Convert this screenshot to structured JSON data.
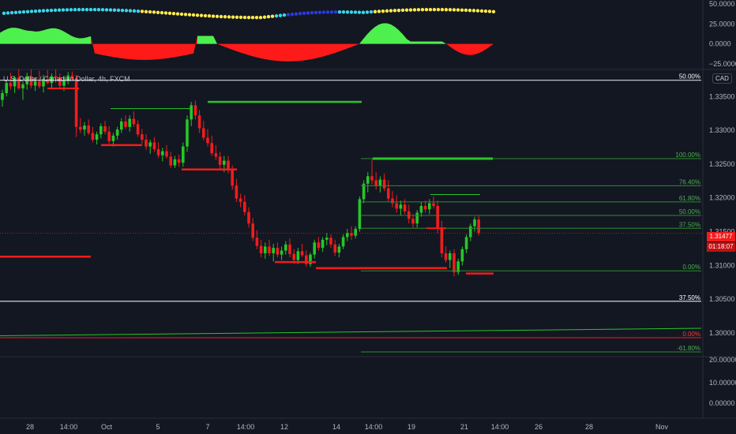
{
  "header": {
    "symbol_title": "U.S. Dollar / Canadian Dollar, 4h, FXCM",
    "currency_badge": "CAD"
  },
  "colors": {
    "background": "#131722",
    "up": "#26c726",
    "down": "#f21c1c",
    "fib_line": "#2e8b2e",
    "fib_text": "#4caf50",
    "osc_green": "#4ef04e",
    "osc_red": "#ff1a1a",
    "dot_cyan": "#3ad6e8",
    "dot_yellow": "#ffe94d",
    "dot_blue": "#2a3bd9",
    "price_tag": "#f21c1c",
    "white_line": "#d1d4dc",
    "grid": "#2a2e39"
  },
  "oscillator": {
    "y_ticks": [
      "50.0000",
      "25.0000",
      "0.0000",
      "−25.0000"
    ],
    "y_values": [
      50,
      25,
      0,
      -25
    ],
    "ylim": [
      -32,
      55
    ]
  },
  "lower_panel": {
    "y_ticks": [
      "20.00000",
      "10.00000",
      "0.00000"
    ]
  },
  "price_axis": {
    "ticks": [
      "1.33500",
      "1.33000",
      "1.32500",
      "1.32000",
      "1.31500",
      "1.31000",
      "1.30500",
      "1.30000"
    ],
    "values": [
      1.335,
      1.33,
      1.325,
      1.32,
      1.315,
      1.31,
      1.305,
      1.3
    ]
  },
  "price_tag": {
    "price": "1.31477",
    "countdown": "01:18:07",
    "value": 1.31477
  },
  "x_axis": {
    "labels": [
      "28",
      "14:00",
      "Oct",
      "5",
      "7",
      "14:00",
      "12",
      "14",
      "14:00",
      "19",
      "21",
      "14:00",
      "26",
      "28",
      "Nov"
    ]
  },
  "fib_levels": [
    {
      "label": "100.00%",
      "price": 1.3258
    },
    {
      "label": "76.40%",
      "price": 1.3218
    },
    {
      "label": "61.80%",
      "price": 1.3194
    },
    {
      "label": "50.00%",
      "price": 1.3174
    },
    {
      "label": "37.50%",
      "price": 1.3155
    },
    {
      "label": "0.00%",
      "price": 1.3092
    }
  ],
  "fib_levels_outer": [
    {
      "label": "50.00%",
      "price": 1.3374
    },
    {
      "label": "37.50%",
      "price": 1.3047
    },
    {
      "label": "0.00%",
      "price": 1.2993
    },
    {
      "label": "-61.80%",
      "price": 1.2972
    }
  ],
  "chart_data": {
    "type": "candlestick",
    "ylim": [
      1.2965,
      1.339
    ],
    "candles": [
      [
        1.3345,
        1.336,
        1.3335,
        1.3355
      ],
      [
        1.3355,
        1.3375,
        1.335,
        1.337
      ],
      [
        1.337,
        1.3385,
        1.336,
        1.3365
      ],
      [
        1.3365,
        1.338,
        1.3355,
        1.3378
      ],
      [
        1.3378,
        1.339,
        1.336,
        1.3362
      ],
      [
        1.3362,
        1.3372,
        1.3345,
        1.3368
      ],
      [
        1.3368,
        1.3385,
        1.336,
        1.338
      ],
      [
        1.338,
        1.339,
        1.3362,
        1.3366
      ],
      [
        1.3366,
        1.3378,
        1.3358,
        1.3372
      ],
      [
        1.3372,
        1.3388,
        1.3362,
        1.3365
      ],
      [
        1.3365,
        1.3382,
        1.3356,
        1.3376
      ],
      [
        1.3376,
        1.3389,
        1.3368,
        1.337
      ],
      [
        1.337,
        1.3384,
        1.3362,
        1.338
      ],
      [
        1.338,
        1.339,
        1.337,
        1.3378
      ],
      [
        1.3378,
        1.3384,
        1.3362,
        1.3366
      ],
      [
        1.3366,
        1.338,
        1.3358,
        1.3374
      ],
      [
        1.3374,
        1.3386,
        1.3368,
        1.3381
      ],
      [
        1.3381,
        1.3387,
        1.3375,
        1.3377
      ],
      [
        1.3377,
        1.3382,
        1.329,
        1.3305
      ],
      [
        1.3305,
        1.3318,
        1.3296,
        1.3301
      ],
      [
        1.3301,
        1.3312,
        1.3292,
        1.3307
      ],
      [
        1.3307,
        1.3316,
        1.3293,
        1.3296
      ],
      [
        1.3296,
        1.3305,
        1.3282,
        1.3286
      ],
      [
        1.3286,
        1.3298,
        1.3279,
        1.3294
      ],
      [
        1.3294,
        1.331,
        1.3288,
        1.3306
      ],
      [
        1.3306,
        1.3314,
        1.3294,
        1.3298
      ],
      [
        1.3298,
        1.3306,
        1.328,
        1.3284
      ],
      [
        1.3284,
        1.3296,
        1.3276,
        1.3292
      ],
      [
        1.3292,
        1.3305,
        1.3286,
        1.3301
      ],
      [
        1.3301,
        1.3318,
        1.3296,
        1.3313
      ],
      [
        1.3313,
        1.3322,
        1.3302,
        1.3305
      ],
      [
        1.3305,
        1.3322,
        1.3298,
        1.3317
      ],
      [
        1.3317,
        1.3328,
        1.3305,
        1.3309
      ],
      [
        1.3309,
        1.3315,
        1.329,
        1.3294
      ],
      [
        1.3294,
        1.3302,
        1.328,
        1.3286
      ],
      [
        1.3286,
        1.3294,
        1.3271,
        1.3276
      ],
      [
        1.3276,
        1.3286,
        1.3265,
        1.3282
      ],
      [
        1.3282,
        1.329,
        1.3268,
        1.3272
      ],
      [
        1.3272,
        1.3282,
        1.3259,
        1.3263
      ],
      [
        1.3263,
        1.3274,
        1.3254,
        1.3269
      ],
      [
        1.3269,
        1.3278,
        1.3258,
        1.3261
      ],
      [
        1.3261,
        1.3268,
        1.3244,
        1.3248
      ],
      [
        1.3248,
        1.3262,
        1.3244,
        1.3257
      ],
      [
        1.3257,
        1.3264,
        1.3246,
        1.3252
      ],
      [
        1.3252,
        1.3282,
        1.3246,
        1.3276
      ],
      [
        1.3276,
        1.3322,
        1.3268,
        1.3316
      ],
      [
        1.3316,
        1.3342,
        1.3306,
        1.3337
      ],
      [
        1.3337,
        1.3344,
        1.3316,
        1.3322
      ],
      [
        1.3322,
        1.333,
        1.3296,
        1.3303
      ],
      [
        1.3303,
        1.3314,
        1.3285,
        1.3289
      ],
      [
        1.3289,
        1.3302,
        1.3276,
        1.3281
      ],
      [
        1.3281,
        1.3292,
        1.3262,
        1.3266
      ],
      [
        1.3266,
        1.3278,
        1.3256,
        1.3261
      ],
      [
        1.3261,
        1.3268,
        1.3243,
        1.3249
      ],
      [
        1.3249,
        1.3262,
        1.3238,
        1.3255
      ],
      [
        1.3255,
        1.3262,
        1.3236,
        1.3241
      ],
      [
        1.3241,
        1.3248,
        1.3212,
        1.3218
      ],
      [
        1.3218,
        1.3228,
        1.3194,
        1.3199
      ],
      [
        1.3199,
        1.3206,
        1.3186,
        1.3194
      ],
      [
        1.3194,
        1.3204,
        1.3174,
        1.3179
      ],
      [
        1.3179,
        1.3186,
        1.3156,
        1.3162
      ],
      [
        1.3162,
        1.317,
        1.3136,
        1.3141
      ],
      [
        1.3141,
        1.3152,
        1.3124,
        1.3129
      ],
      [
        1.3129,
        1.3138,
        1.3112,
        1.3118
      ],
      [
        1.3118,
        1.3134,
        1.311,
        1.3128
      ],
      [
        1.3128,
        1.3138,
        1.3114,
        1.3118
      ],
      [
        1.3118,
        1.3132,
        1.3106,
        1.3126
      ],
      [
        1.3126,
        1.3134,
        1.3112,
        1.3116
      ],
      [
        1.3116,
        1.3128,
        1.3108,
        1.3122
      ],
      [
        1.3122,
        1.3136,
        1.3116,
        1.3131
      ],
      [
        1.3131,
        1.314,
        1.3112,
        1.3117
      ],
      [
        1.3117,
        1.3124,
        1.3102,
        1.3108
      ],
      [
        1.3108,
        1.3126,
        1.3102,
        1.3121
      ],
      [
        1.3121,
        1.3132,
        1.3112,
        1.3115
      ],
      [
        1.3115,
        1.3122,
        1.3098,
        1.3102
      ],
      [
        1.3102,
        1.3119,
        1.3098,
        1.3116
      ],
      [
        1.3116,
        1.3138,
        1.311,
        1.3134
      ],
      [
        1.3134,
        1.3142,
        1.3122,
        1.3126
      ],
      [
        1.3126,
        1.3142,
        1.312,
        1.3138
      ],
      [
        1.3138,
        1.3148,
        1.313,
        1.3141
      ],
      [
        1.3141,
        1.3146,
        1.3126,
        1.3131
      ],
      [
        1.3131,
        1.3138,
        1.3114,
        1.3119
      ],
      [
        1.3119,
        1.3132,
        1.3112,
        1.3128
      ],
      [
        1.3128,
        1.3146,
        1.3124,
        1.3142
      ],
      [
        1.3142,
        1.3154,
        1.3136,
        1.3148
      ],
      [
        1.3148,
        1.3158,
        1.3138,
        1.3144
      ],
      [
        1.3144,
        1.3158,
        1.314,
        1.3154
      ],
      [
        1.3154,
        1.3202,
        1.315,
        1.3198
      ],
      [
        1.3198,
        1.3226,
        1.3192,
        1.3221
      ],
      [
        1.3221,
        1.3238,
        1.3208,
        1.3232
      ],
      [
        1.3232,
        1.3258,
        1.322,
        1.3226
      ],
      [
        1.3226,
        1.3238,
        1.3212,
        1.3218
      ],
      [
        1.3218,
        1.3232,
        1.3208,
        1.3227
      ],
      [
        1.3227,
        1.3236,
        1.321,
        1.3214
      ],
      [
        1.3214,
        1.3226,
        1.3194,
        1.3199
      ],
      [
        1.3199,
        1.321,
        1.3186,
        1.3192
      ],
      [
        1.3192,
        1.3204,
        1.3178,
        1.3184
      ],
      [
        1.3184,
        1.3196,
        1.3174,
        1.319
      ],
      [
        1.319,
        1.3198,
        1.3176,
        1.318
      ],
      [
        1.318,
        1.319,
        1.3162,
        1.3169
      ],
      [
        1.3169,
        1.3176,
        1.3156,
        1.3162
      ],
      [
        1.3162,
        1.3182,
        1.3156,
        1.3178
      ],
      [
        1.3178,
        1.3194,
        1.3172,
        1.3188
      ],
      [
        1.3188,
        1.3196,
        1.3178,
        1.3183
      ],
      [
        1.3183,
        1.3198,
        1.3176,
        1.3192
      ],
      [
        1.3192,
        1.3202,
        1.3184,
        1.3188
      ],
      [
        1.3188,
        1.3196,
        1.3148,
        1.3156
      ],
      [
        1.3156,
        1.3166,
        1.3112,
        1.3118
      ],
      [
        1.3118,
        1.3128,
        1.3104,
        1.3108
      ],
      [
        1.3108,
        1.3122,
        1.3096,
        1.3118
      ],
      [
        1.3118,
        1.3124,
        1.3084,
        1.309
      ],
      [
        1.309,
        1.311,
        1.3086,
        1.3106
      ],
      [
        1.3106,
        1.3128,
        1.31,
        1.3124
      ],
      [
        1.3124,
        1.3146,
        1.3118,
        1.3142
      ],
      [
        1.3142,
        1.3162,
        1.3136,
        1.3158
      ],
      [
        1.3158,
        1.3172,
        1.315,
        1.3168
      ],
      [
        1.3168,
        1.3174,
        1.3144,
        1.3148
      ]
    ]
  }
}
